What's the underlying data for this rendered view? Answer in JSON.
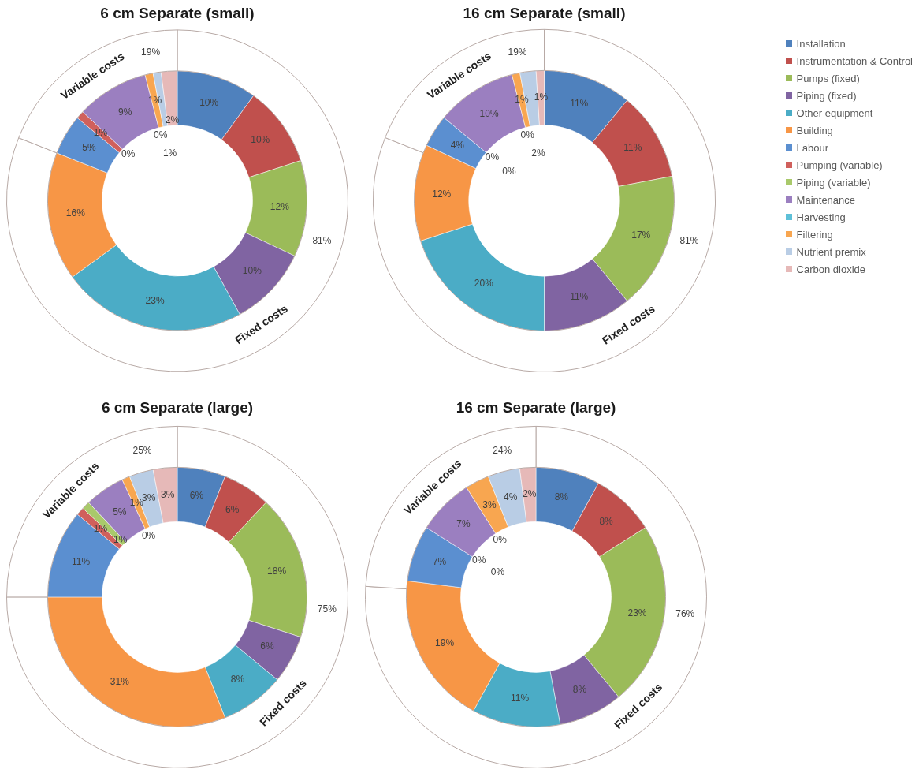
{
  "chart_data": [
    {
      "type": "donut",
      "title": "6 cm Separate (small)",
      "categories": [
        null,
        null,
        null,
        null,
        null,
        null,
        null,
        null,
        null,
        null,
        null,
        null,
        null,
        null
      ],
      "values": [
        10,
        10,
        12,
        10,
        23,
        16,
        5,
        1,
        0,
        9,
        0,
        1,
        1,
        2
      ],
      "value_labels": [
        "10%",
        "10%",
        "12%",
        "10%",
        "23%",
        "16%",
        "5%",
        "1%",
        "0%",
        "9%",
        "0%",
        "1%",
        "1%",
        "2%"
      ],
      "colors": [
        "#4f81bd",
        "#c0504d",
        "#9bbb59",
        "#8064a2",
        "#4bacc6",
        "#f79646",
        "#5b8fd0",
        "#d0605c",
        "#a9c96b",
        "#9b7fc0",
        "#5ec0d8",
        "#f8a650",
        "#b9cde5",
        "#e6b9b8"
      ]
    },
    {
      "type": "donut",
      "categories": [
        "Fixed costs",
        "Variable costs"
      ],
      "values": [
        81,
        19
      ],
      "value_labels": [
        "81%",
        "19%"
      ],
      "colors": [
        "#ffffff",
        "#ffffff"
      ]
    },
    {
      "type": "donut",
      "title": "16 cm Separate (small)",
      "legend": "top right",
      "categories": [
        "Installation",
        "Instrumentation & Control",
        "Pumps (fixed)",
        "Piping (fixed)",
        "Other equipment",
        "Building",
        "Labour",
        "Pumping (variable)",
        "Piping (variable)",
        "Maintenance",
        "Harvesting",
        "Filtering",
        "Nutrient premix",
        "Carbon dioxide"
      ],
      "values": [
        11,
        11,
        17,
        11,
        20,
        12,
        4,
        0,
        0,
        10,
        0,
        1,
        2,
        1
      ],
      "value_labels": [
        "11%",
        "11%",
        "17%",
        "11%",
        "20%",
        "12%",
        "4%",
        "0%",
        "0%",
        "10%",
        "0%",
        "1%",
        "2%",
        "1%"
      ],
      "colors": [
        "#4f81bd",
        "#c0504d",
        "#9bbb59",
        "#8064a2",
        "#4bacc6",
        "#f79646",
        "#5b8fd0",
        "#d0605c",
        "#a9c96b",
        "#9b7fc0",
        "#5ec0d8",
        "#f8a650",
        "#b9cde5",
        "#e6b9b8"
      ]
    },
    {
      "type": "donut",
      "categories": [
        "Fixed costs",
        "Variable costs"
      ],
      "values": [
        81,
        19
      ],
      "value_labels": [
        "81%",
        "19%"
      ],
      "colors": [
        "#ffffff",
        "#ffffff"
      ]
    },
    {
      "type": "donut",
      "title": "6 cm Separate (large)",
      "categories": [
        null,
        null,
        null,
        null,
        null,
        null,
        null,
        null,
        null,
        null,
        null,
        null,
        null,
        null
      ],
      "values": [
        6,
        6,
        18,
        6,
        8,
        31,
        11,
        1,
        1,
        5,
        0,
        1,
        3,
        3
      ],
      "value_labels": [
        "6%",
        "6%",
        "18%",
        "6%",
        "8%",
        "31%",
        "11%",
        "1%",
        "1%",
        "5%",
        "0%",
        "1%",
        "3%",
        "3%"
      ],
      "colors": [
        "#4f81bd",
        "#c0504d",
        "#9bbb59",
        "#8064a2",
        "#4bacc6",
        "#f79646",
        "#5b8fd0",
        "#d0605c",
        "#a9c96b",
        "#9b7fc0",
        "#5ec0d8",
        "#f8a650",
        "#b9cde5",
        "#e6b9b8"
      ]
    },
    {
      "type": "donut",
      "categories": [
        "Fixed costs",
        "Variable costs"
      ],
      "values": [
        75,
        25
      ],
      "value_labels": [
        "75%",
        "25%"
      ],
      "colors": [
        "#ffffff",
        "#ffffff"
      ]
    },
    {
      "type": "donut",
      "title": "16 cm Separate (large)",
      "categories": [
        null,
        null,
        null,
        null,
        null,
        null,
        null,
        null,
        null,
        null,
        null,
        null,
        null,
        null
      ],
      "values": [
        8,
        8,
        23,
        8,
        11,
        19,
        7,
        0,
        0,
        7,
        0,
        3,
        4,
        2
      ],
      "value_labels": [
        "8%",
        "8%",
        "23%",
        "8%",
        "11%",
        "19%",
        "7%",
        "0%",
        "0%",
        "7%",
        "0%",
        "3%",
        "4%",
        "2%"
      ],
      "colors": [
        "#4f81bd",
        "#c0504d",
        "#9bbb59",
        "#8064a2",
        "#4bacc6",
        "#f79646",
        "#5b8fd0",
        "#d0605c",
        "#a9c96b",
        "#9b7fc0",
        "#5ec0d8",
        "#f8a650",
        "#b9cde5",
        "#e6b9b8"
      ]
    },
    {
      "type": "donut",
      "categories": [
        "Fixed costs",
        "Variable costs"
      ],
      "values": [
        76,
        24
      ],
      "value_labels": [
        "76%",
        "24%"
      ],
      "colors": [
        "#ffffff",
        "#ffffff"
      ]
    }
  ]
}
